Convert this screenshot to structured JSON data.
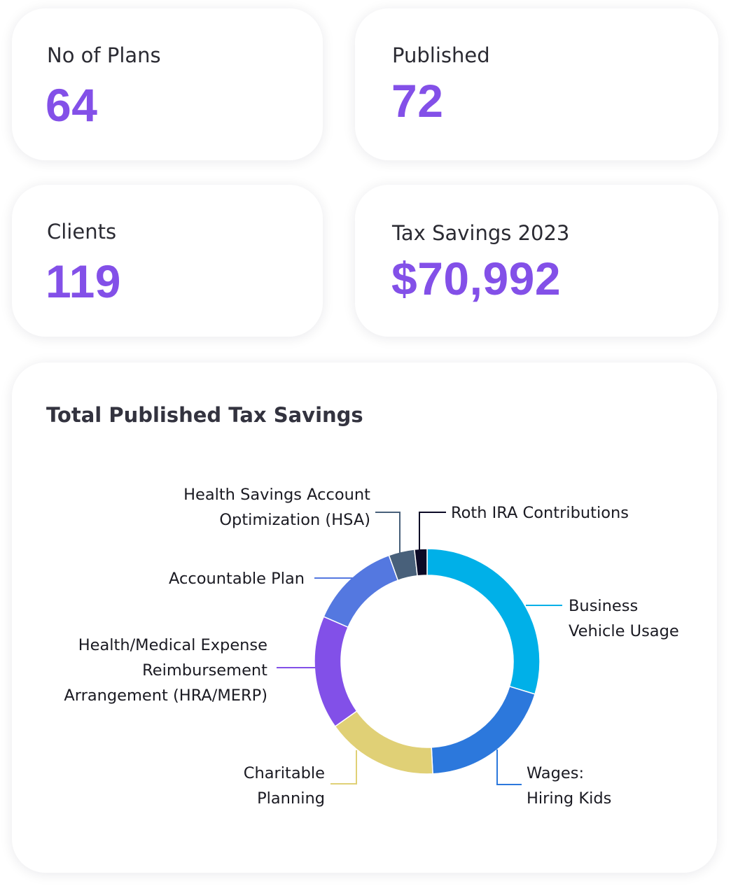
{
  "stats": {
    "plans": {
      "label": "No of Plans",
      "value": "64"
    },
    "published": {
      "label": "Published",
      "value": "72"
    },
    "clients": {
      "label": "Clients",
      "value": "119"
    },
    "tax_savings": {
      "label": "Tax Savings 2023",
      "value": "$70,992"
    }
  },
  "colors": {
    "accent": "#8350e8",
    "business_vehicle": "#00b0e8",
    "wages": "#2c78dc",
    "charitable": "#e0d076",
    "hra": "#8250e8",
    "accountable": "#5478e0",
    "hsa": "#48607a",
    "roth": "#0c0a26"
  },
  "chart_data": {
    "type": "pie",
    "title": "Total Published Tax Savings",
    "donut": true,
    "series": [
      {
        "values": [
          {
            "label": "Business Vehicle Usage",
            "label_lines": [
              "Business",
              "Vehicle Usage"
            ],
            "share": 0.297,
            "color": "#00b0e8"
          },
          {
            "label": "Wages: Hiring Kids",
            "label_lines": [
              "Wages:",
              "Hiring Kids"
            ],
            "share": 0.195,
            "color": "#2c78dc"
          },
          {
            "label": "Charitable Planning",
            "label_lines": [
              "Charitable",
              "Planning"
            ],
            "share": 0.16,
            "color": "#e0d076"
          },
          {
            "label": "Health/Medical Expense Reimbursement Arrangement (HRA/MERP)",
            "label_lines": [
              "Health/Medical Expense",
              "Reimbursement",
              "Arrangement (HRA/MERP)"
            ],
            "share": 0.163,
            "color": "#8250e8"
          },
          {
            "label": "Accountable Plan",
            "label_lines": [
              "Accountable Plan"
            ],
            "share": 0.13,
            "color": "#5478e0"
          },
          {
            "label": "Health Savings Account Optimization (HSA)",
            "label_lines": [
              "Health Savings Account",
              "Optimization (HSA)"
            ],
            "share": 0.037,
            "color": "#48607a"
          },
          {
            "label": "Roth IRA Contributions",
            "label_lines": [
              "Roth IRA Contributions"
            ],
            "share": 0.018,
            "color": "#0c0a26"
          }
        ]
      }
    ]
  }
}
